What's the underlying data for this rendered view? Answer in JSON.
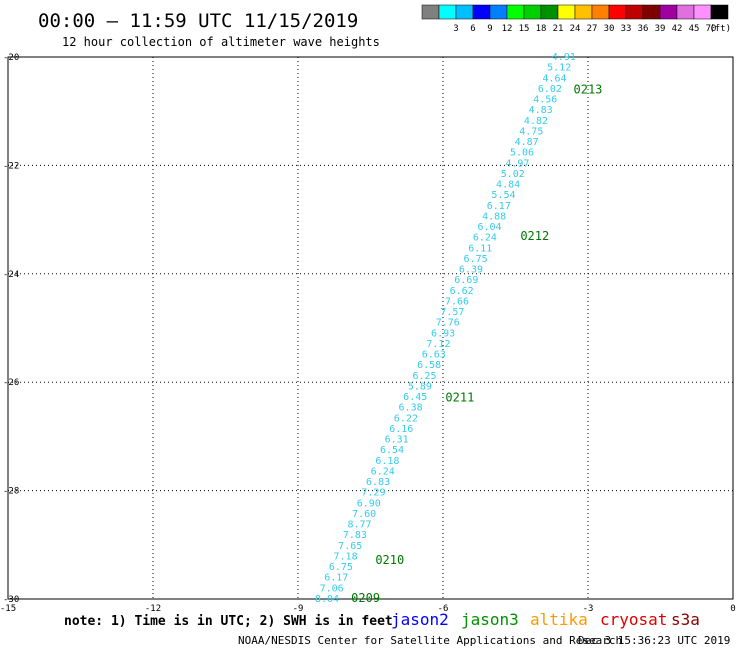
{
  "header": {
    "title": "00:00 – 11:59 UTC 11/15/2019",
    "subtitle": "12 hour collection of altimeter wave heights"
  },
  "legend": {
    "unit": "(ft)",
    "swatches": [
      {
        "color": "#808080",
        "label": ""
      },
      {
        "color": "#00ffff",
        "label": "3"
      },
      {
        "color": "#00bfff",
        "label": "6"
      },
      {
        "color": "#0000ff",
        "label": "9"
      },
      {
        "color": "#0080ff",
        "label": "12"
      },
      {
        "color": "#00ff00",
        "label": "15"
      },
      {
        "color": "#00d000",
        "label": "18"
      },
      {
        "color": "#009000",
        "label": "21"
      },
      {
        "color": "#ffff00",
        "label": "24"
      },
      {
        "color": "#ffc000",
        "label": "27"
      },
      {
        "color": "#ff8000",
        "label": "30"
      },
      {
        "color": "#ff0000",
        "label": "33"
      },
      {
        "color": "#c00000",
        "label": "36"
      },
      {
        "color": "#800000",
        "label": "39"
      },
      {
        "color": "#a000a0",
        "label": "42"
      },
      {
        "color": "#e070e0",
        "label": "45"
      },
      {
        "color": "#ff90ff",
        "label": "70"
      },
      {
        "color": "#000000",
        "label": ""
      }
    ]
  },
  "map": {
    "lon_range": [
      -15,
      0
    ],
    "lat_range": [
      -30,
      -20
    ],
    "x_ticks": [
      {
        "v": -15,
        "label": "-15"
      },
      {
        "v": -12,
        "label": "-12"
      },
      {
        "v": -9,
        "label": "-9"
      },
      {
        "v": -6,
        "label": "-6"
      },
      {
        "v": -3,
        "label": "-3"
      },
      {
        "v": 0,
        "label": "0"
      }
    ],
    "y_ticks": [
      {
        "v": -20,
        "label": "-20"
      },
      {
        "v": -22,
        "label": "-22"
      },
      {
        "v": -24,
        "label": "-24"
      },
      {
        "v": -26,
        "label": "-26"
      },
      {
        "v": -28,
        "label": "-28"
      },
      {
        "v": -30,
        "label": "-30"
      }
    ],
    "track_color": "#33ccee",
    "time_color": "#007700",
    "track_start": {
      "lon": -8.4,
      "lat": -30.0
    },
    "track_end": {
      "lon": -3.5,
      "lat": -20.0
    },
    "heights": [
      "8.04",
      "7.06",
      "6.17",
      "6.75",
      "7.18",
      "7.65",
      "7.83",
      "8.77",
      "7.60",
      "6.90",
      "7.29",
      "6.83",
      "6.24",
      "6.18",
      "6.54",
      "6.31",
      "6.16",
      "6.22",
      "6.38",
      "6.45",
      "5.89",
      "6.25",
      "6.58",
      "6.63",
      "7.12",
      "6.93",
      "7.76",
      "7.57",
      "7.66",
      "6.62",
      "6.69",
      "6.39",
      "6.75",
      "6.11",
      "6.24",
      "6.04",
      "4.88",
      "6.17",
      "5.54",
      "4.84",
      "5.02",
      "4.97",
      "5.06",
      "4.87",
      "4.75",
      "4.82",
      "4.83",
      "4.56",
      "6.02",
      "4.64",
      "5.12",
      "4.91"
    ],
    "times": [
      {
        "label": "0209",
        "lon": -7.9,
        "lat": -29.98
      },
      {
        "label": "0210",
        "lon": -7.4,
        "lat": -29.28
      },
      {
        "label": "0211",
        "lon": -5.95,
        "lat": -26.28
      },
      {
        "label": "0212",
        "lon": -4.4,
        "lat": -23.3
      },
      {
        "label": "0213",
        "lon": -3.3,
        "lat": -20.6
      }
    ]
  },
  "footer": {
    "note": "note: 1) Time is in UTC; 2) SWH is in feet",
    "satellites": [
      {
        "name": "jason2",
        "color": "#0000ff"
      },
      {
        "name": "jason3",
        "color": "#009000"
      },
      {
        "name": "altika",
        "color": "#ff9900"
      },
      {
        "name": "cryosat",
        "color": "#dd0000"
      },
      {
        "name": "s3a",
        "color": "#880000"
      }
    ],
    "credit": "NOAA/NESDIS Center for Satellite Applications and Research",
    "timestamp": "Dec  3 15:36:23 UTC 2019"
  }
}
